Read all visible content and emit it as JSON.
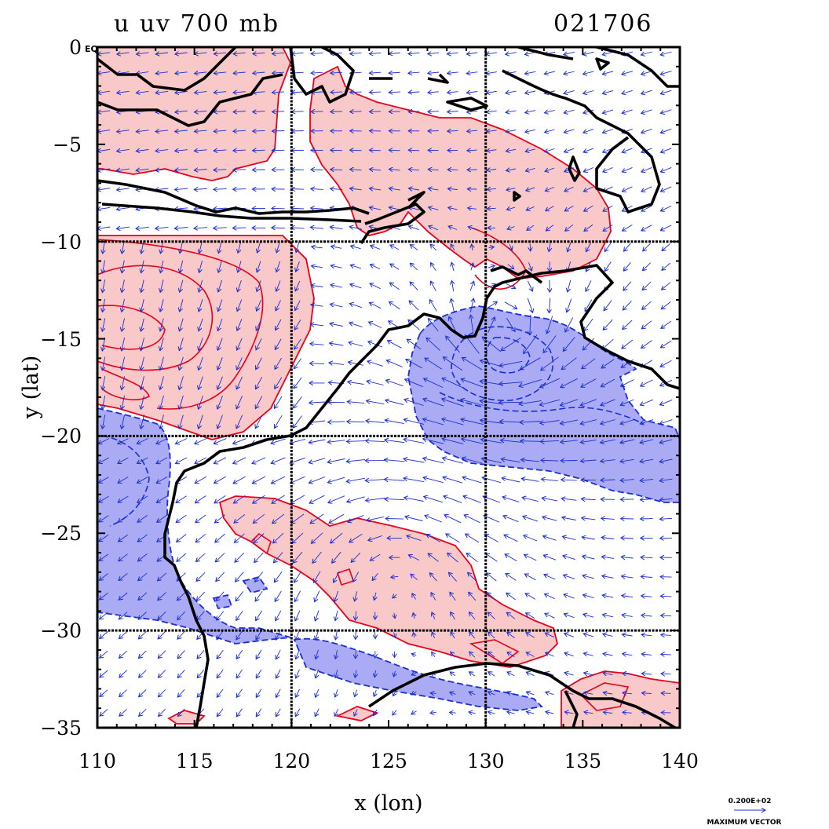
{
  "header": {
    "title": "u  uv 700 mb",
    "date_code": "021706",
    "corner_label": "EQ"
  },
  "chart_data": {
    "type": "heatmap",
    "xlabel": "x (lon)",
    "ylabel": "y (lat)",
    "xlim": [
      110,
      140
    ],
    "ylim": [
      -35,
      0
    ],
    "x_ticks": [
      "110",
      "115",
      "120",
      "125",
      "130",
      "135",
      "140"
    ],
    "y_ticks": [
      "0",
      "−5",
      "−10",
      "−15",
      "−20",
      "−25",
      "−30",
      "−35"
    ],
    "grid_lon": [
      120,
      130
    ],
    "grid_lat": [
      -10,
      -20,
      -30
    ],
    "colors": {
      "positive_fill": "#f9c8c8",
      "positive_line": "#e8001c",
      "negative_fill": "#aaaaf5",
      "negative_line": "#1a2fd0",
      "vector": "#1a2fd0",
      "coast": "#000000"
    }
  },
  "legend": {
    "magnitude": "0.200E+02",
    "label": "MAXIMUM VECTOR"
  }
}
